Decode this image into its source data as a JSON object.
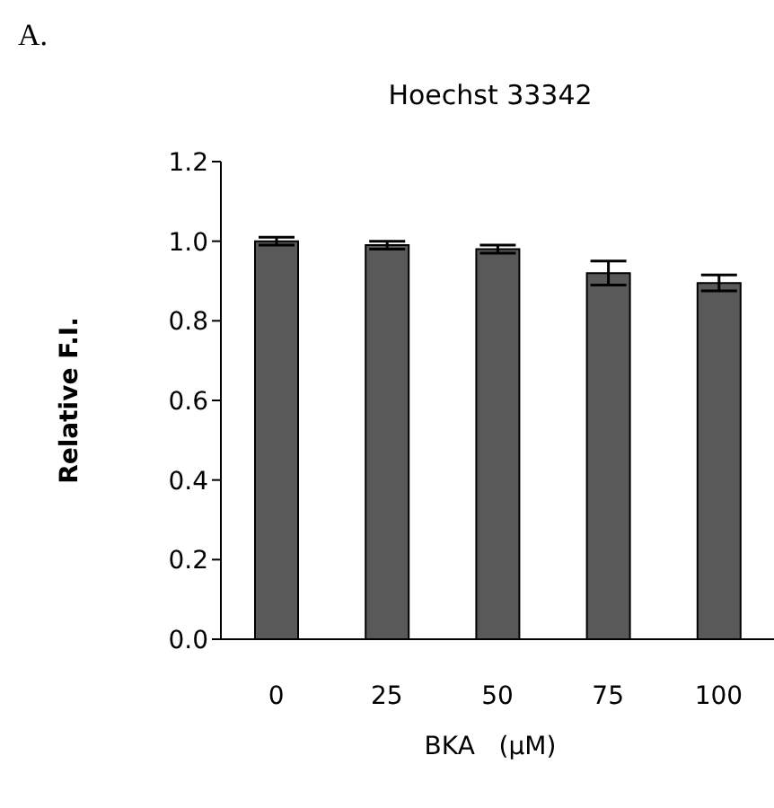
{
  "chart_data": {
    "type": "bar",
    "title": "Hoechst 33342",
    "xlabel": "BKA   (μM)",
    "ylabel": "Relative F.I.",
    "annotations": [
      "A."
    ],
    "categories": [
      "0",
      "25",
      "50",
      "75",
      "100"
    ],
    "values": [
      1.0,
      0.99,
      0.98,
      0.92,
      0.895
    ],
    "errors": [
      0.01,
      0.01,
      0.01,
      0.03,
      0.02
    ],
    "color": "#595959",
    "ylim": [
      0,
      1.2
    ],
    "yticks": [
      {
        "value": 0,
        "label": "0.0"
      },
      0.2,
      0.4,
      0.6,
      0.8,
      {
        "value": 1,
        "label": "1.0"
      },
      1.2
    ],
    "grid": false,
    "legend": false
  }
}
